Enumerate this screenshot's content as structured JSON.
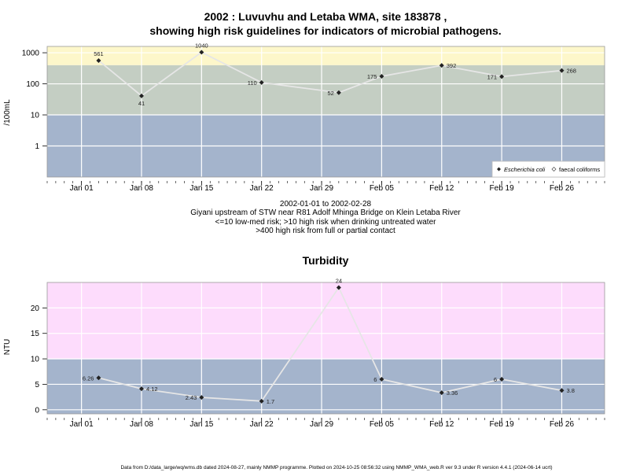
{
  "top_chart": {
    "title_line1": "2002 : Luvuvhu and Letaba WMA, site 183878 ,",
    "title_line2": "showing high risk guidelines for indicators of microbial pathogens.",
    "ylabel": "/100mL",
    "notes": [
      "2002-01-01 to 2002-02-28",
      "Giyani upstream of STW near R81 Adolf Mhinga Bridge on Klein Letaba River",
      "<=10 low-med risk; >10 high risk when drinking untreated water",
      ">400 high risk from full or partial contact"
    ],
    "legend": {
      "ecoli": "Escherichia coli",
      "faecal": "faecal coliforms"
    }
  },
  "bottom_chart": {
    "title": "Turbidity",
    "ylabel": "NTU"
  },
  "footer": "Data from D:/data_large/wq/wms.db dated 2024-08-27, mainly NMMP programme. Plotted on 2024-10-25 08:56:32 using NMMP_WMA_web.R ver 9.3 under R version 4.4.1 (2024-06-14 ucrt)",
  "chart_data": [
    {
      "type": "line",
      "title": "2002 : Luvuvhu and Letaba WMA, site 183878 , showing high risk guidelines for indicators of microbial pathogens.",
      "ylabel": "/100mL",
      "yscale": "log",
      "ylim": [
        0.1,
        1600
      ],
      "xlim": [
        "2001-12-28",
        "2003-03-03"
      ],
      "x_ticks": [
        "Jan 01",
        "Jan 08",
        "Jan 15",
        "Jan 22",
        "Jan 29",
        "Feb 05",
        "Feb 12",
        "Feb 19",
        "Feb 26"
      ],
      "y_ticks": [
        "1",
        "10",
        "100",
        "1000"
      ],
      "grid": true,
      "legend_position": "bottom-right",
      "bands": [
        {
          "from": 0.1,
          "to": 10,
          "color": "#a4b4cc"
        },
        {
          "from": 10,
          "to": 400,
          "color": "#c4cec3"
        },
        {
          "from": 400,
          "to": 1600,
          "color": "#fdf7ca"
        }
      ],
      "series": [
        {
          "name": "Escherichia coli",
          "points": [
            {
              "x": "2002-01-03",
              "y": 561,
              "label": "561"
            },
            {
              "x": "2002-01-08",
              "y": 41,
              "label": "41"
            },
            {
              "x": "2002-01-15",
              "y": 1040,
              "label": "1040"
            },
            {
              "x": "2002-01-22",
              "y": 110,
              "label": "110"
            },
            {
              "x": "2002-01-31",
              "y": 52,
              "label": "52"
            },
            {
              "x": "2002-02-05",
              "y": 175,
              "label": "175"
            },
            {
              "x": "2002-02-12",
              "y": 392,
              "label": "392"
            },
            {
              "x": "2002-02-19",
              "y": 171,
              "label": "171"
            },
            {
              "x": "2002-02-26",
              "y": 268,
              "label": "268"
            }
          ]
        },
        {
          "name": "faecal coliforms",
          "points": []
        }
      ]
    },
    {
      "type": "line",
      "title": "Turbidity",
      "ylabel": "NTU",
      "yscale": "linear",
      "ylim": [
        -0.8,
        25
      ],
      "xlim": [
        "2001-12-28",
        "2003-03-03"
      ],
      "x_ticks": [
        "Jan 01",
        "Jan 08",
        "Jan 15",
        "Jan 22",
        "Jan 29",
        "Feb 05",
        "Feb 12",
        "Feb 19",
        "Feb 26"
      ],
      "y_ticks": [
        "0",
        "5",
        "10",
        "15",
        "20"
      ],
      "grid": true,
      "bands": [
        {
          "from": -0.8,
          "to": 10,
          "color": "#a4b4cc"
        },
        {
          "from": 10,
          "to": 25,
          "color": "#fddcfc"
        }
      ],
      "series": [
        {
          "name": "",
          "points": [
            {
              "x": "2002-01-03",
              "y": 6.26,
              "label": "6.26"
            },
            {
              "x": "2002-01-08",
              "y": 4.12,
              "label": "4.12"
            },
            {
              "x": "2002-01-15",
              "y": 2.43,
              "label": "2.43"
            },
            {
              "x": "2002-01-22",
              "y": 1.7,
              "label": "1.7"
            },
            {
              "x": "2002-01-31",
              "y": 24,
              "label": "24"
            },
            {
              "x": "2002-02-05",
              "y": 6,
              "label": "6"
            },
            {
              "x": "2002-02-12",
              "y": 3.36,
              "label": "3.36"
            },
            {
              "x": "2002-02-19",
              "y": 6,
              "label": "6"
            },
            {
              "x": "2002-02-26",
              "y": 3.8,
              "label": "3.8"
            }
          ]
        }
      ]
    }
  ]
}
